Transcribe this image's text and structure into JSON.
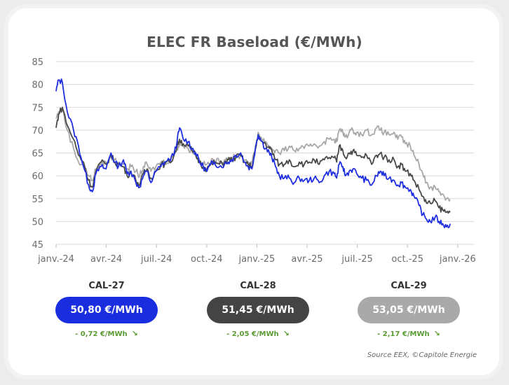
{
  "chart_data": {
    "type": "line",
    "title": "ELEC FR Baseload (€/MWh)",
    "xlabel": "",
    "ylabel": "",
    "ylim": [
      45,
      85
    ],
    "yticks": [
      45,
      50,
      55,
      60,
      65,
      70,
      75,
      80,
      85
    ],
    "xticks": [
      "janv.-24",
      "avr.-24",
      "juil.-24",
      "oct.-24",
      "janv.-25",
      "avr.-25",
      "juil.-25",
      "oct.-25",
      "janv.-26"
    ],
    "grid": "horizontal",
    "legend": "none",
    "series": [
      {
        "color": "#1f2fe0",
        "points": [
          [
            0,
            78.5
          ],
          [
            0.1,
            81
          ],
          [
            0.25,
            80.5
          ],
          [
            0.45,
            74
          ],
          [
            0.7,
            70
          ],
          [
            0.9,
            66.5
          ],
          [
            1.1,
            62
          ],
          [
            1.3,
            58
          ],
          [
            1.45,
            56.5
          ],
          [
            1.6,
            60.5
          ],
          [
            1.8,
            62
          ],
          [
            2,
            61.5
          ],
          [
            2.2,
            65
          ],
          [
            2.35,
            63
          ],
          [
            2.5,
            62
          ],
          [
            2.7,
            63.5
          ],
          [
            2.85,
            60.5
          ],
          [
            3,
            61
          ],
          [
            3.2,
            58.5
          ],
          [
            3.35,
            57.5
          ],
          [
            3.5,
            60
          ],
          [
            3.65,
            61
          ],
          [
            3.8,
            58.5
          ],
          [
            4,
            61
          ],
          [
            4.2,
            62
          ],
          [
            4.35,
            63
          ],
          [
            4.55,
            63.5
          ],
          [
            4.7,
            64.5
          ],
          [
            4.85,
            67.5
          ],
          [
            4.95,
            70.5
          ],
          [
            5.1,
            68
          ],
          [
            5.3,
            67.5
          ],
          [
            5.45,
            66
          ],
          [
            5.6,
            65
          ],
          [
            5.75,
            63
          ],
          [
            5.9,
            62
          ],
          [
            6.05,
            61
          ],
          [
            6.2,
            62.5
          ],
          [
            6.35,
            63
          ],
          [
            6.55,
            62
          ],
          [
            6.75,
            62.5
          ],
          [
            6.9,
            63
          ],
          [
            7.05,
            63.5
          ],
          [
            7.2,
            64.5
          ],
          [
            7.4,
            65
          ],
          [
            7.55,
            63
          ],
          [
            7.7,
            62
          ],
          [
            7.85,
            61.5
          ],
          [
            8,
            66.5
          ],
          [
            8.1,
            69
          ],
          [
            8.25,
            67.5
          ],
          [
            8.4,
            66
          ],
          [
            8.55,
            65
          ],
          [
            8.65,
            64
          ],
          [
            8.8,
            62
          ],
          [
            8.95,
            60
          ],
          [
            9.15,
            59.5
          ],
          [
            9.35,
            59.5
          ],
          [
            9.55,
            58.5
          ],
          [
            9.75,
            59.5
          ],
          [
            9.95,
            59
          ],
          [
            10.15,
            59
          ],
          [
            10.35,
            59.5
          ],
          [
            10.55,
            58.5
          ],
          [
            10.75,
            60
          ],
          [
            10.95,
            61
          ],
          [
            11.15,
            60.5
          ],
          [
            11.25,
            59.5
          ],
          [
            11.35,
            62.5
          ],
          [
            11.5,
            62
          ],
          [
            11.6,
            60
          ],
          [
            11.75,
            61
          ],
          [
            11.9,
            61.5
          ],
          [
            12.05,
            60.5
          ],
          [
            12.25,
            59.5
          ],
          [
            12.45,
            59
          ],
          [
            12.65,
            58
          ],
          [
            12.85,
            60
          ],
          [
            13,
            61
          ],
          [
            13.15,
            60
          ],
          [
            13.35,
            59.5
          ],
          [
            13.55,
            59
          ],
          [
            13.7,
            58
          ],
          [
            13.85,
            58.5
          ],
          [
            14,
            57.5
          ],
          [
            14.2,
            57
          ],
          [
            14.35,
            55.5
          ],
          [
            14.55,
            53.5
          ],
          [
            14.7,
            51.5
          ],
          [
            14.85,
            50.5
          ],
          [
            15,
            50
          ],
          [
            15.2,
            51
          ],
          [
            15.35,
            50
          ],
          [
            15.5,
            49.5
          ],
          [
            15.65,
            48.8
          ],
          [
            15.8,
            49.5
          ]
        ]
      },
      {
        "color": "#484848",
        "points": [
          [
            0,
            70.5
          ],
          [
            0.1,
            73.5
          ],
          [
            0.25,
            75
          ],
          [
            0.45,
            71
          ],
          [
            0.7,
            68
          ],
          [
            0.9,
            64.5
          ],
          [
            1.1,
            63
          ],
          [
            1.3,
            59
          ],
          [
            1.45,
            57.5
          ],
          [
            1.6,
            61
          ],
          [
            1.8,
            63
          ],
          [
            2,
            62.5
          ],
          [
            2.2,
            64.5
          ],
          [
            2.35,
            63
          ],
          [
            2.5,
            62.5
          ],
          [
            2.7,
            62
          ],
          [
            2.85,
            60
          ],
          [
            3,
            61
          ],
          [
            3.2,
            59
          ],
          [
            3.35,
            58
          ],
          [
            3.5,
            60.5
          ],
          [
            3.65,
            61.5
          ],
          [
            3.8,
            59.5
          ],
          [
            4,
            61
          ],
          [
            4.2,
            62.5
          ],
          [
            4.35,
            62.5
          ],
          [
            4.55,
            63
          ],
          [
            4.7,
            64
          ],
          [
            4.85,
            66.5
          ],
          [
            4.95,
            68
          ],
          [
            5.1,
            67
          ],
          [
            5.3,
            66.5
          ],
          [
            5.45,
            65.5
          ],
          [
            5.6,
            64.5
          ],
          [
            5.75,
            63
          ],
          [
            5.9,
            62
          ],
          [
            6.05,
            61.5
          ],
          [
            6.2,
            62.5
          ],
          [
            6.35,
            63
          ],
          [
            6.55,
            62.5
          ],
          [
            6.75,
            63
          ],
          [
            6.9,
            63.5
          ],
          [
            7.05,
            63.5
          ],
          [
            7.2,
            64
          ],
          [
            7.4,
            64.5
          ],
          [
            7.55,
            63
          ],
          [
            7.7,
            62.5
          ],
          [
            7.85,
            62
          ],
          [
            8,
            66
          ],
          [
            8.1,
            68.5
          ],
          [
            8.25,
            67.5
          ],
          [
            8.4,
            67
          ],
          [
            8.55,
            66
          ],
          [
            8.65,
            65.5
          ],
          [
            8.8,
            63.5
          ],
          [
            8.95,
            62.5
          ],
          [
            9.15,
            62.5
          ],
          [
            9.35,
            63.5
          ],
          [
            9.55,
            62
          ],
          [
            9.75,
            63
          ],
          [
            9.95,
            62.5
          ],
          [
            10.15,
            63
          ],
          [
            10.35,
            63.5
          ],
          [
            10.55,
            62.5
          ],
          [
            10.75,
            63.5
          ],
          [
            10.95,
            64
          ],
          [
            11.15,
            64
          ],
          [
            11.25,
            63
          ],
          [
            11.35,
            66.5
          ],
          [
            11.5,
            65.5
          ],
          [
            11.6,
            64
          ],
          [
            11.75,
            65
          ],
          [
            11.9,
            65.5
          ],
          [
            12.05,
            64.5
          ],
          [
            12.25,
            64
          ],
          [
            12.45,
            64.5
          ],
          [
            12.65,
            62.5
          ],
          [
            12.85,
            64.5
          ],
          [
            13,
            65
          ],
          [
            13.15,
            64
          ],
          [
            13.35,
            63.5
          ],
          [
            13.55,
            63.5
          ],
          [
            13.7,
            62
          ],
          [
            13.85,
            62.5
          ],
          [
            14,
            61
          ],
          [
            14.2,
            60.5
          ],
          [
            14.35,
            59
          ],
          [
            14.55,
            57
          ],
          [
            14.7,
            55.5
          ],
          [
            14.85,
            54
          ],
          [
            15,
            54
          ],
          [
            15.2,
            54.5
          ],
          [
            15.35,
            53
          ],
          [
            15.5,
            52.5
          ],
          [
            15.65,
            52
          ],
          [
            15.8,
            52
          ]
        ]
      },
      {
        "color": "#a8a8a8",
        "points": [
          [
            0,
            72.5
          ],
          [
            0.1,
            74
          ],
          [
            0.25,
            74.5
          ],
          [
            0.45,
            70
          ],
          [
            0.7,
            66
          ],
          [
            0.9,
            63
          ],
          [
            1.1,
            62.5
          ],
          [
            1.3,
            60
          ],
          [
            1.45,
            59
          ],
          [
            1.6,
            61.5
          ],
          [
            1.8,
            62.5
          ],
          [
            2,
            63
          ],
          [
            2.2,
            64
          ],
          [
            2.35,
            63.5
          ],
          [
            2.5,
            63
          ],
          [
            2.7,
            62.5
          ],
          [
            2.85,
            61.5
          ],
          [
            3,
            62
          ],
          [
            3.2,
            61
          ],
          [
            3.35,
            60
          ],
          [
            3.5,
            62
          ],
          [
            3.65,
            62.5
          ],
          [
            3.8,
            61
          ],
          [
            4,
            62
          ],
          [
            4.2,
            63
          ],
          [
            4.35,
            63
          ],
          [
            4.55,
            63.5
          ],
          [
            4.7,
            64.5
          ],
          [
            4.85,
            66
          ],
          [
            4.95,
            67
          ],
          [
            5.1,
            66.5
          ],
          [
            5.3,
            66
          ],
          [
            5.45,
            65.5
          ],
          [
            5.6,
            64.5
          ],
          [
            5.75,
            63.5
          ],
          [
            5.9,
            62.5
          ],
          [
            6.05,
            62.5
          ],
          [
            6.2,
            63
          ],
          [
            6.35,
            63.5
          ],
          [
            6.55,
            63
          ],
          [
            6.75,
            63.5
          ],
          [
            6.9,
            64
          ],
          [
            7.05,
            64
          ],
          [
            7.2,
            64
          ],
          [
            7.4,
            64.5
          ],
          [
            7.55,
            63.5
          ],
          [
            7.7,
            63
          ],
          [
            7.85,
            62.5
          ],
          [
            8,
            66.5
          ],
          [
            8.1,
            69.5
          ],
          [
            8.25,
            68
          ],
          [
            8.4,
            67.5
          ],
          [
            8.55,
            66.5
          ],
          [
            8.65,
            66
          ],
          [
            8.8,
            65.5
          ],
          [
            8.95,
            65
          ],
          [
            9.15,
            65.5
          ],
          [
            9.35,
            66.5
          ],
          [
            9.55,
            65.5
          ],
          [
            9.75,
            66
          ],
          [
            9.95,
            66
          ],
          [
            10.15,
            66.5
          ],
          [
            10.35,
            67
          ],
          [
            10.55,
            66.5
          ],
          [
            10.75,
            67.5
          ],
          [
            10.95,
            68
          ],
          [
            11.15,
            68
          ],
          [
            11.25,
            67.5
          ],
          [
            11.35,
            70
          ],
          [
            11.5,
            69.5
          ],
          [
            11.6,
            68.5
          ],
          [
            11.75,
            69.5
          ],
          [
            11.9,
            70
          ],
          [
            12.05,
            69.5
          ],
          [
            12.25,
            69
          ],
          [
            12.45,
            70
          ],
          [
            12.65,
            69
          ],
          [
            12.85,
            70.5
          ],
          [
            13,
            70
          ],
          [
            13.15,
            69.5
          ],
          [
            13.35,
            69
          ],
          [
            13.55,
            69.5
          ],
          [
            13.7,
            68
          ],
          [
            13.85,
            68.5
          ],
          [
            14,
            67
          ],
          [
            14.2,
            66.5
          ],
          [
            14.35,
            64.5
          ],
          [
            14.55,
            62.5
          ],
          [
            14.7,
            60.5
          ],
          [
            14.85,
            58.5
          ],
          [
            15,
            57.5
          ],
          [
            15.2,
            57.5
          ],
          [
            15.35,
            56.5
          ],
          [
            15.5,
            56
          ],
          [
            15.65,
            55
          ],
          [
            15.8,
            54.8
          ]
        ]
      }
    ]
  },
  "cards": [
    {
      "label": "CAL-27",
      "price": "50,80 €/MWh",
      "delta": "- 0,72 €/MWh",
      "color": "#1a2ee0"
    },
    {
      "label": "CAL-28",
      "price": "51,45  €/MWh",
      "delta": "- 2,05 €/MWh",
      "color": "#444444"
    },
    {
      "label": "CAL-29",
      "price": "53,05 €/MWh",
      "delta": "- 2,17 €/MWh",
      "color": "#a9a9a9"
    }
  ],
  "delta_arrow": "↘",
  "source": "Source EEX, ©Capitole Energie"
}
